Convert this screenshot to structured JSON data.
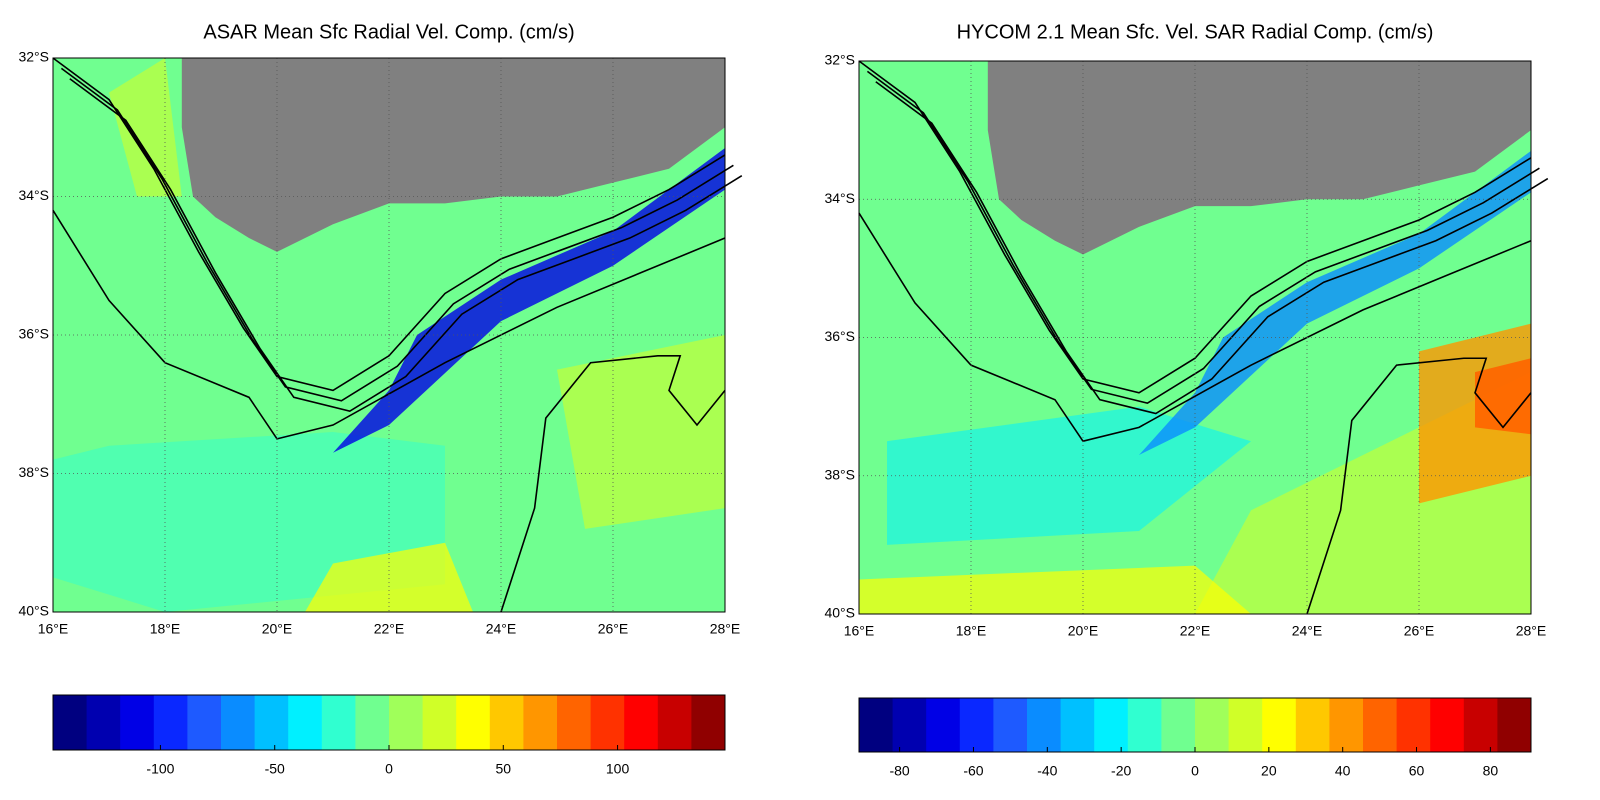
{
  "panels": [
    {
      "title": "ASAR Mean Sfc Radial Vel. Comp. (cm/s)",
      "xlim": [
        16,
        28
      ],
      "ylim": [
        -40,
        -32
      ],
      "xticks": [
        {
          "value": 16,
          "label": "16°E"
        },
        {
          "value": 18,
          "label": "18°E"
        },
        {
          "value": 20,
          "label": "20°E"
        },
        {
          "value": 22,
          "label": "22°E"
        },
        {
          "value": 24,
          "label": "24°E"
        },
        {
          "value": 26,
          "label": "26°E"
        },
        {
          "value": 28,
          "label": "28°E"
        }
      ],
      "yticks": [
        {
          "value": -32,
          "label": "32°S"
        },
        {
          "value": -34,
          "label": "34°S"
        },
        {
          "value": -36,
          "label": "36°S"
        },
        {
          "value": -38,
          "label": "38°S"
        },
        {
          "value": -40,
          "label": "40°S"
        }
      ],
      "grid": true,
      "colorbar": {
        "clim": [
          -147,
          147
        ],
        "ticks": [
          -100,
          -50,
          0,
          50,
          100
        ],
        "colors": [
          "#000080",
          "#0000b0",
          "#0000e6",
          "#0a28ff",
          "#1e5aff",
          "#0a8cff",
          "#00c0ff",
          "#00f0ff",
          "#30ffd0",
          "#70ff90",
          "#a0ff5a",
          "#d0ff28",
          "#ffff00",
          "#ffc800",
          "#ff9600",
          "#ff6400",
          "#ff3200",
          "#ff0000",
          "#c80000",
          "#900000"
        ]
      }
    },
    {
      "title": "HYCOM 2.1 Mean Sfc. Vel. SAR Radial Comp. (cm/s)",
      "xlim": [
        16,
        28
      ],
      "ylim": [
        -40,
        -32
      ],
      "xticks": [
        {
          "value": 16,
          "label": "16°E"
        },
        {
          "value": 18,
          "label": "18°E"
        },
        {
          "value": 20,
          "label": "20°E"
        },
        {
          "value": 22,
          "label": "22°E"
        },
        {
          "value": 24,
          "label": "24°E"
        },
        {
          "value": 26,
          "label": "26°E"
        },
        {
          "value": 28,
          "label": "28°E"
        }
      ],
      "yticks": [
        {
          "value": -32,
          "label": "32°S"
        },
        {
          "value": -34,
          "label": "34°S"
        },
        {
          "value": -36,
          "label": "36°S"
        },
        {
          "value": -38,
          "label": "38°S"
        },
        {
          "value": -40,
          "label": "40°S"
        }
      ],
      "grid": true,
      "colorbar": {
        "clim": [
          -91,
          91
        ],
        "ticks": [
          -80,
          -60,
          -40,
          -20,
          0,
          20,
          40,
          60,
          80
        ],
        "colors": [
          "#000080",
          "#0000b0",
          "#0000e6",
          "#0a28ff",
          "#1e5aff",
          "#0a8cff",
          "#00c0ff",
          "#00f0ff",
          "#30ffd0",
          "#70ff90",
          "#a0ff5a",
          "#d0ff28",
          "#ffff00",
          "#ffc800",
          "#ff9600",
          "#ff6400",
          "#ff3200",
          "#ff0000",
          "#c80000",
          "#900000"
        ]
      }
    }
  ]
}
